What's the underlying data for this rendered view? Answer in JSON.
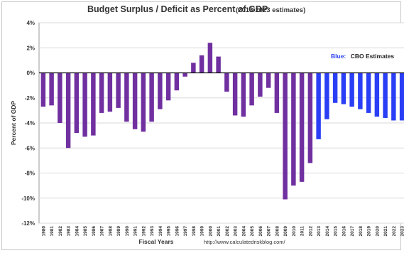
{
  "chart_data": {
    "type": "bar",
    "title": "Budget Surplus / Deficit as Percent of GDP",
    "subtitle": "(2013-2023 estimates)",
    "xlabel": "Fiscal Years",
    "ylabel": "Percent of GDP",
    "source_text": "http://www.calculatedriskblog.com/",
    "ylim": [
      -12,
      4
    ],
    "yticks": [
      4,
      2,
      0,
      -2,
      -4,
      -6,
      -8,
      -10,
      -12
    ],
    "ytick_labels": [
      "4%",
      "2%",
      "0%",
      "-2%",
      "-4%",
      "-6%",
      "-8%",
      "-10%",
      "-12%"
    ],
    "grid": true,
    "legend": {
      "position": "right",
      "key": "Blue:",
      "text": "CBO Estimates"
    },
    "colors": {
      "actual": "#7030a0",
      "estimate": "#2a3ff5"
    },
    "categories": [
      "1980",
      "1981",
      "1982",
      "1983",
      "1984",
      "1985",
      "1986",
      "1987",
      "1988",
      "1989",
      "1990",
      "1991",
      "1992",
      "1993",
      "1994",
      "1995",
      "1996",
      "1997",
      "1998",
      "1999",
      "2000",
      "2001",
      "2002",
      "2003",
      "2004",
      "2005",
      "2006",
      "2007",
      "2008",
      "2009",
      "2010",
      "2011",
      "2012",
      "2013",
      "2014",
      "2015",
      "2016",
      "2017",
      "2018",
      "2019",
      "2020",
      "2021",
      "2022",
      "2023"
    ],
    "series": [
      {
        "values": [
          -2.7,
          -2.6,
          -4.0,
          -6.0,
          -4.8,
          -5.1,
          -5.0,
          -3.2,
          -3.1,
          -2.8,
          -3.9,
          -4.5,
          -4.7,
          -3.9,
          -2.9,
          -2.2,
          -1.4,
          -0.3,
          0.8,
          1.4,
          2.4,
          1.3,
          -1.5,
          -3.4,
          -3.5,
          -2.6,
          -1.9,
          -1.2,
          -3.2,
          -10.1,
          -9.0,
          -8.7,
          -7.2,
          -5.3,
          -3.7,
          -2.4,
          -2.5,
          -2.7,
          -2.9,
          -3.2,
          -3.5,
          -3.6,
          -3.8,
          -3.8
        ],
        "estimate_from_index": 33
      }
    ]
  }
}
